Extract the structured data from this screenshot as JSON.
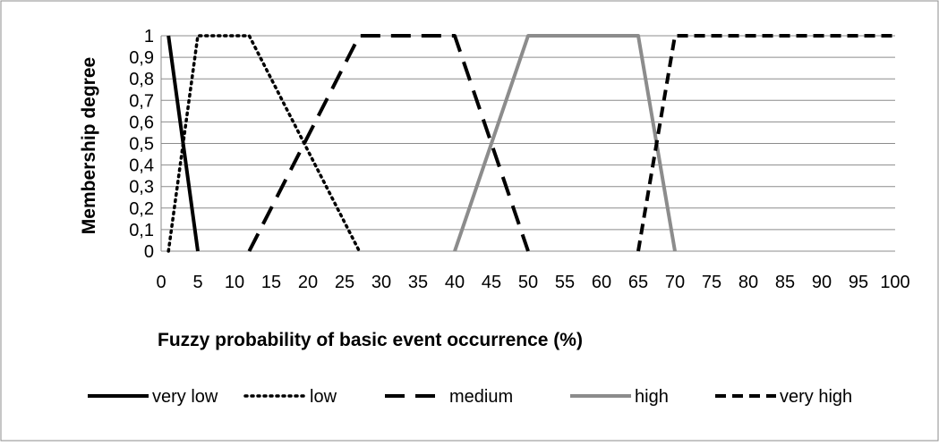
{
  "chart_data": {
    "type": "line",
    "title": "",
    "xlabel": "Fuzzy probability of basic event occurrence (%)",
    "ylabel": "Membership degree",
    "xlim": [
      0,
      100
    ],
    "ylim": [
      0,
      1
    ],
    "x_ticks": [
      "0",
      "5",
      "10",
      "15",
      "20",
      "25",
      "30",
      "35",
      "40",
      "45",
      "50",
      "55",
      "60",
      "65",
      "70",
      "75",
      "80",
      "85",
      "90",
      "95",
      "100"
    ],
    "y_ticks": [
      "0",
      "0,1",
      "0,2",
      "0,3",
      "0,4",
      "0,5",
      "0,6",
      "0,7",
      "0,8",
      "0,9",
      "1"
    ],
    "grid": "horizontal",
    "legend_position": "bottom",
    "series": [
      {
        "name": "very low",
        "color": "#000000",
        "style": "solid",
        "points": [
          [
            1,
            1
          ],
          [
            5,
            0
          ]
        ]
      },
      {
        "name": "low",
        "color": "#000000",
        "style": "dotted",
        "points": [
          [
            1,
            0
          ],
          [
            5,
            1
          ],
          [
            12,
            1
          ],
          [
            27,
            0
          ]
        ]
      },
      {
        "name": "medium",
        "color": "#000000",
        "style": "long-dash",
        "points": [
          [
            12,
            0
          ],
          [
            27,
            1
          ],
          [
            40,
            1
          ],
          [
            50,
            0
          ]
        ]
      },
      {
        "name": "high",
        "color": "#8c8c8c",
        "style": "solid",
        "points": [
          [
            40,
            0
          ],
          [
            50,
            1
          ],
          [
            65,
            1
          ],
          [
            70,
            0
          ]
        ]
      },
      {
        "name": "very high",
        "color": "#000000",
        "style": "short-dash",
        "points": [
          [
            65,
            0
          ],
          [
            70,
            1
          ],
          [
            100,
            1
          ]
        ]
      }
    ]
  }
}
